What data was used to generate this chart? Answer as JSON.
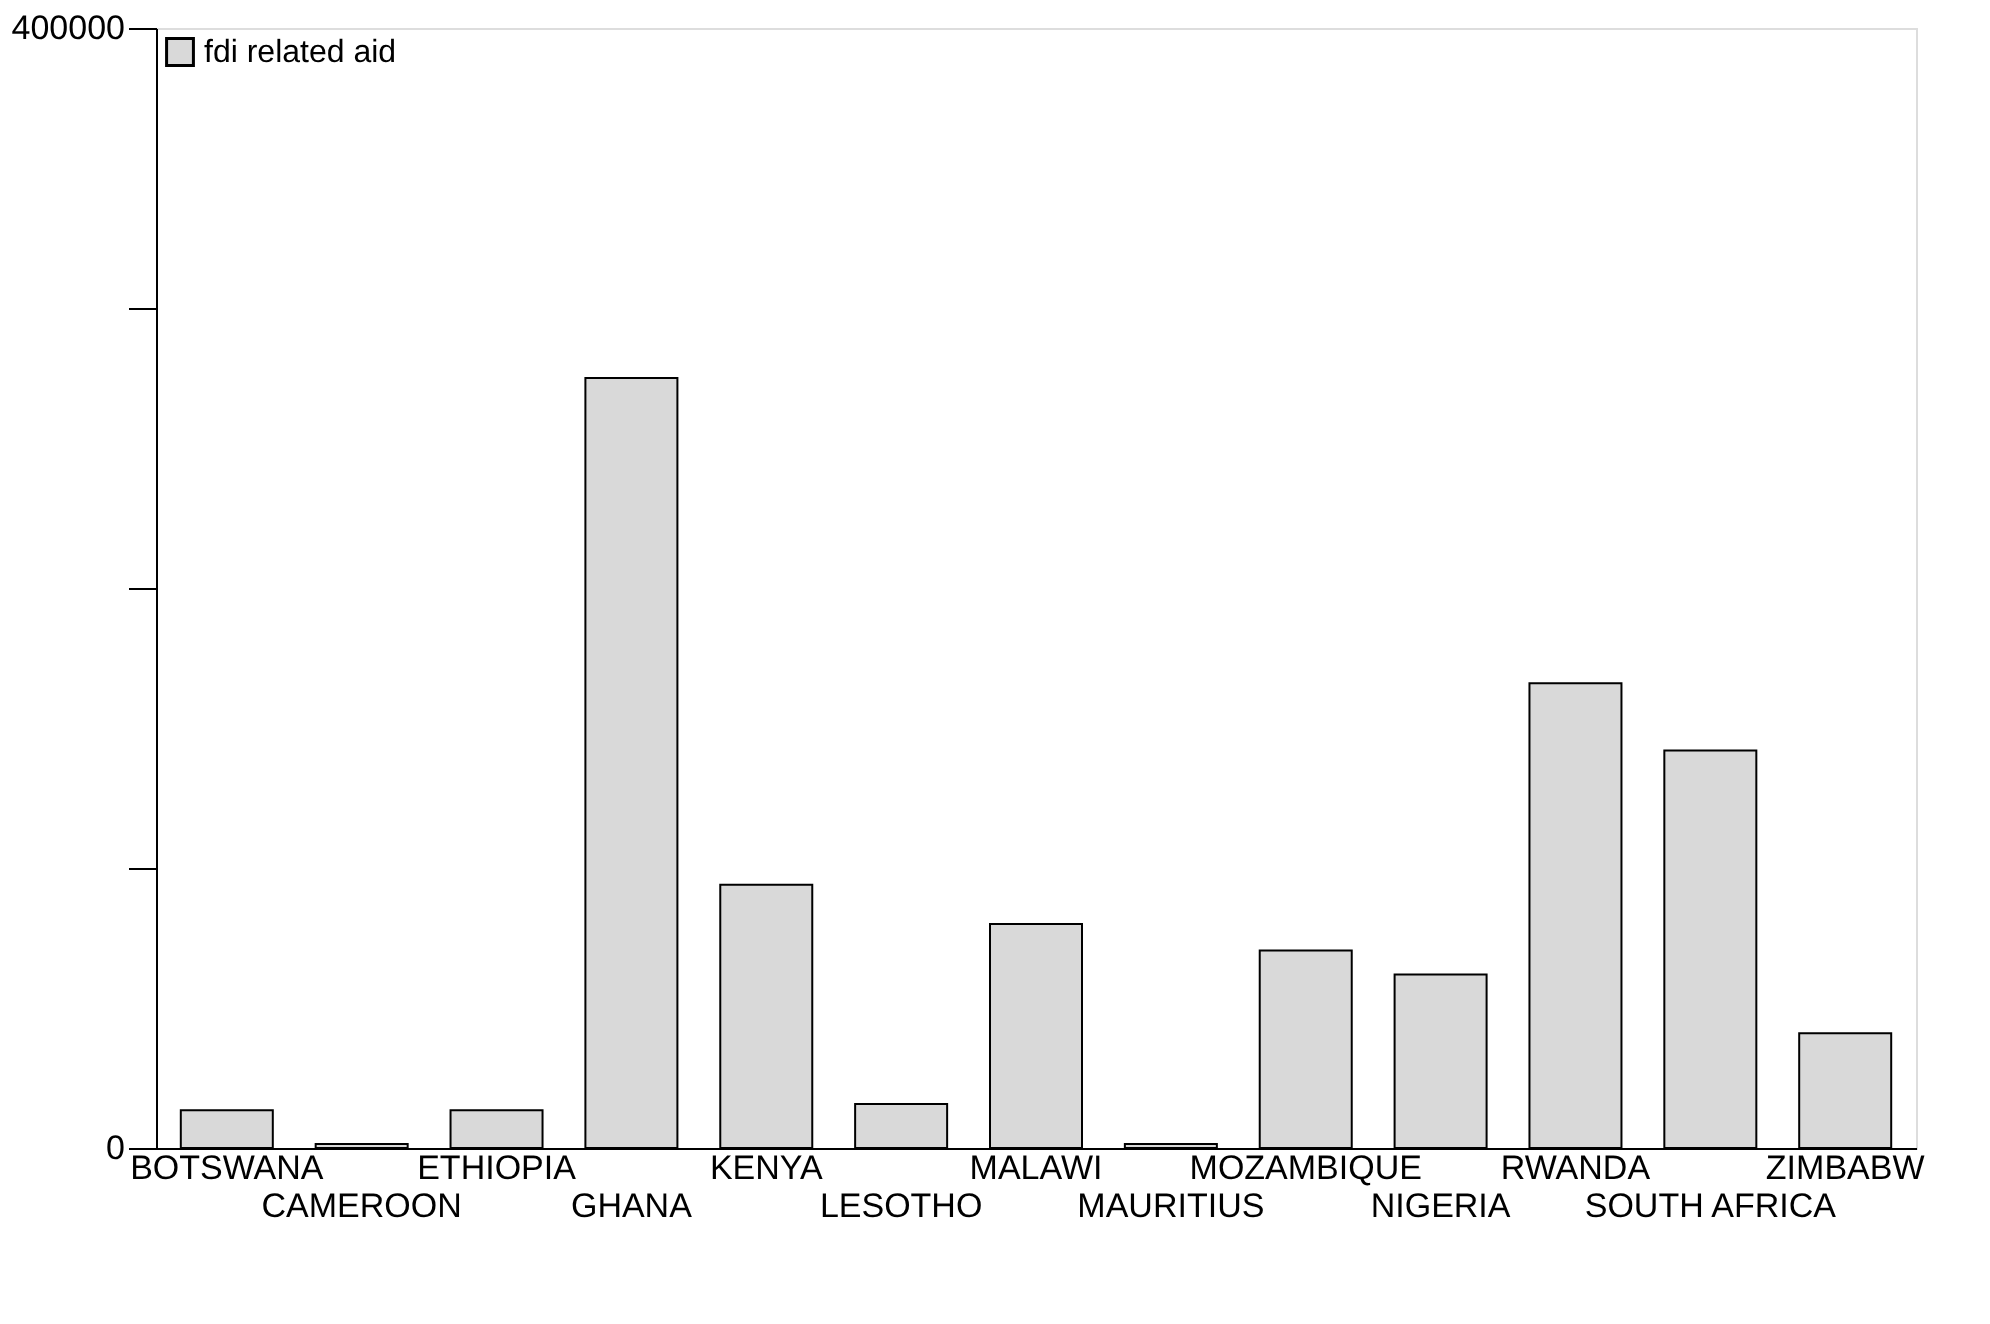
{
  "chart_data": {
    "type": "bar",
    "categories": [
      "BOTSWANA",
      "CAMEROON",
      "ETHIOPIA",
      "GHANA",
      "KENYA",
      "LESOTHO",
      "MALAWI",
      "MAURITIUS",
      "MOZAMBIQUE",
      "NIGERIA",
      "RWANDA",
      "SOUTH AFRICA",
      "ZIMBABW"
    ],
    "series": [
      {
        "name": "fdi related aid",
        "color": "#d9d9d9",
        "values": [
          13500,
          1400,
          13500,
          275000,
          94000,
          15700,
          80000,
          1400,
          70500,
          62000,
          166000,
          142000,
          41000
        ]
      }
    ],
    "ylim": [
      0,
      400000
    ],
    "yticks": [
      0,
      {
        "value": 100000,
        "label": null
      },
      {
        "value": 200000,
        "label": null
      },
      {
        "value": 300000,
        "label": null
      },
      400000
    ],
    "grid": false,
    "legend": "top left"
  }
}
